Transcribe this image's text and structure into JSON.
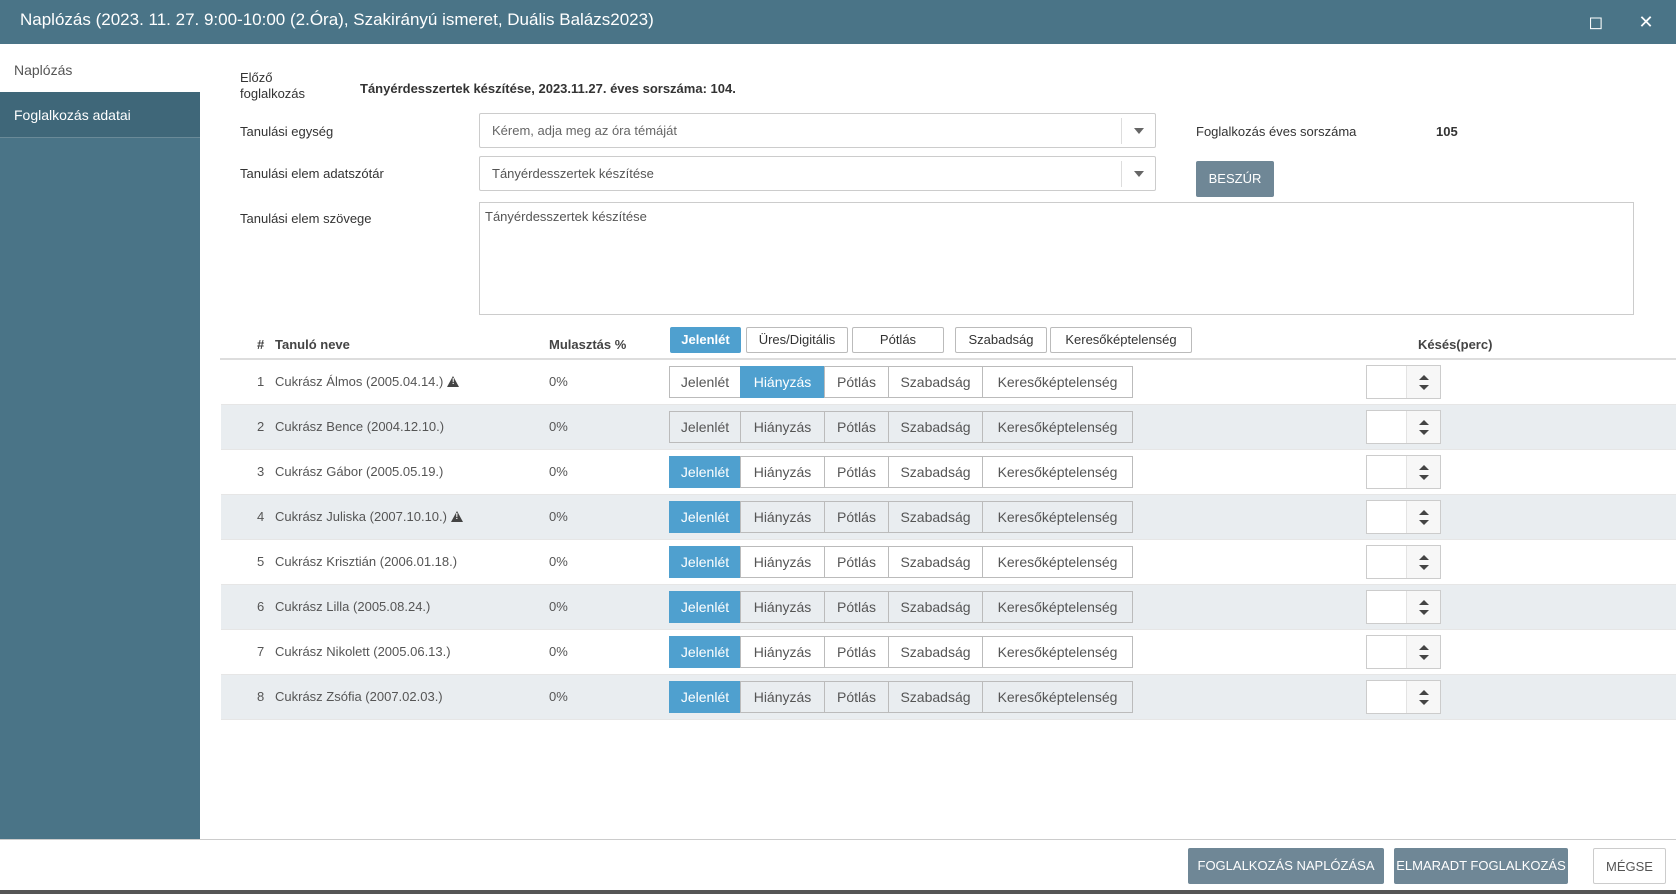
{
  "window": {
    "title": "Naplózás (2023. 11. 27. 9:00-10:00 (2.Óra), Szakirányú ismeret, Duális Balázs2023)",
    "maximize_icon": "maximize-icon",
    "close_icon": "close-icon"
  },
  "sidebar": {
    "items": [
      {
        "label": "Naplózás"
      },
      {
        "label": "Foglalkozás adatai"
      }
    ]
  },
  "form": {
    "prev_label": "Előző foglalkozás",
    "prev_value": "Tányérdesszertek készítése, 2023.11.27. éves sorszáma: 104.",
    "unit_label": "Tanulási egység",
    "unit_placeholder": "Kérem, adja meg az óra témáját",
    "dict_label": "Tanulási elem adatszótár",
    "dict_value": "Tányérdesszertek készítése",
    "text_label": "Tanulási elem szövege",
    "text_value": "Tányérdesszertek készítése",
    "serial_label": "Foglalkozás éves sorszáma",
    "serial_value": "105",
    "insert_button": "BESZÚR"
  },
  "table": {
    "col_num": "#",
    "col_name": "Tanuló neve",
    "col_pct": "Mulasztás %",
    "col_late": "Késés(perc)",
    "header_toggles": [
      "Jelenlét",
      "Üres/Digitális",
      "Pótlás",
      "Szabadság",
      "Keresőképtelenség"
    ],
    "status_options": [
      "Jelenlét",
      "Hiányzás",
      "Pótlás",
      "Szabadság",
      "Keresőképtelenség"
    ],
    "rows": [
      {
        "num": "1",
        "name": "Cukrász Álmos (2005.04.14.)",
        "warning": true,
        "pct": "0%",
        "selected": "Hiányzás"
      },
      {
        "num": "2",
        "name": "Cukrász Bence (2004.12.10.)",
        "warning": false,
        "pct": "0%",
        "selected": ""
      },
      {
        "num": "3",
        "name": "Cukrász Gábor (2005.05.19.)",
        "warning": false,
        "pct": "0%",
        "selected": "Jelenlét"
      },
      {
        "num": "4",
        "name": "Cukrász Juliska (2007.10.10.)",
        "warning": true,
        "pct": "0%",
        "selected": "Jelenlét"
      },
      {
        "num": "5",
        "name": "Cukrász Krisztián (2006.01.18.)",
        "warning": false,
        "pct": "0%",
        "selected": "Jelenlét"
      },
      {
        "num": "6",
        "name": "Cukrász Lilla (2005.08.24.)",
        "warning": false,
        "pct": "0%",
        "selected": "Jelenlét"
      },
      {
        "num": "7",
        "name": "Cukrász Nikolett (2005.06.13.)",
        "warning": false,
        "pct": "0%",
        "selected": "Jelenlét"
      },
      {
        "num": "8",
        "name": "Cukrász Zsófia (2007.02.03.)",
        "warning": false,
        "pct": "0%",
        "selected": "Jelenlét"
      }
    ]
  },
  "footer": {
    "log_button": "FOGLALKOZÁS NAPLÓZÁSA",
    "missed_button": "ELMARADT FOGLALKOZÁS",
    "cancel_button": "MÉGSE"
  },
  "colors": {
    "header_bg": "#4a7487",
    "active_blue": "#4fa0cf",
    "button_grey": "#6f8796"
  }
}
